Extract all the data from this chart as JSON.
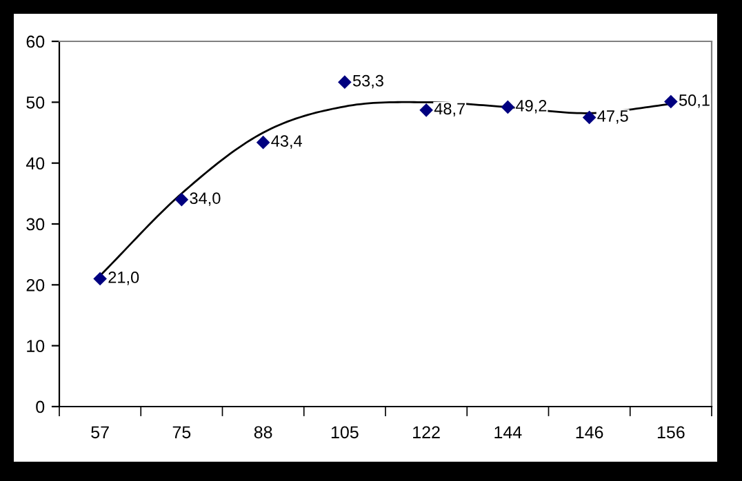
{
  "chart_data": {
    "type": "scatter",
    "categories": [
      "57",
      "75",
      "88",
      "105",
      "122",
      "144",
      "146",
      "156"
    ],
    "ylim": [
      0,
      60
    ],
    "yticks": [
      0,
      10,
      20,
      30,
      40,
      50,
      60
    ],
    "grid": false,
    "legend": false,
    "marker": "diamond",
    "series": [
      {
        "color": "#000080",
        "values": [
          21.0,
          34.0,
          43.4,
          53.3,
          48.7,
          49.2,
          47.5,
          50.1
        ],
        "value_labels": [
          "21,0",
          "34,0",
          "43,4",
          "53,3",
          "48,7",
          "49,2",
          "47,5",
          "50,1"
        ]
      },
      {
        "type": "line",
        "color": "#000000",
        "line_style": "solid",
        "marker": "none",
        "values": [
          21.5,
          35,
          45,
          49.3,
          50,
          49.2,
          48.2,
          49.7
        ]
      }
    ]
  }
}
